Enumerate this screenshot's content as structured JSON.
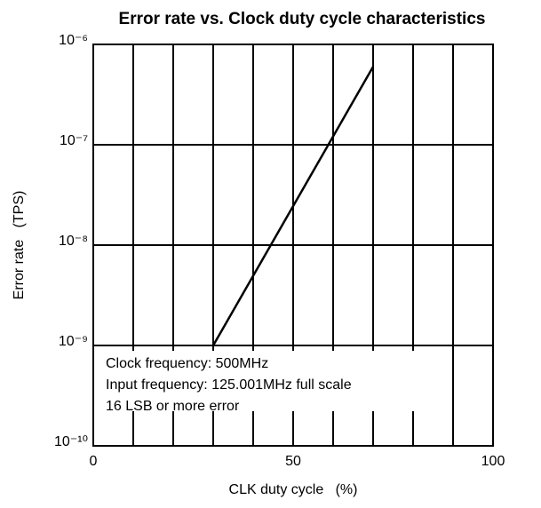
{
  "chart_data": {
    "type": "line",
    "title": "Error rate vs. Clock duty cycle characteristics",
    "xlabel": "CLK duty cycle   (%)",
    "ylabel": "Error rate   (TPS)",
    "x": [
      30,
      70
    ],
    "values": [
      1e-09,
      6e-07
    ],
    "color": "#000000",
    "xlim": [
      0,
      100
    ],
    "xticks": [
      0,
      50,
      100
    ],
    "xminor": [
      10,
      20,
      30,
      40,
      60,
      70,
      80,
      90
    ],
    "ylim": [
      1e-10,
      1e-06
    ],
    "yticks": [
      {
        "value": 1e-10,
        "label": "10⁻¹⁰"
      },
      {
        "value": 1e-09,
        "label": "10⁻⁹"
      },
      {
        "value": 1e-08,
        "label": "10⁻⁸"
      },
      {
        "value": 1e-07,
        "label": "10⁻⁷"
      },
      {
        "value": 1e-06,
        "label": "10⁻⁶"
      }
    ],
    "ylog": true,
    "grid": true,
    "annotations": [
      "Clock frequency: 500MHz",
      "Input frequency: 125.001MHz full scale",
      "16 LSB or more error"
    ]
  }
}
